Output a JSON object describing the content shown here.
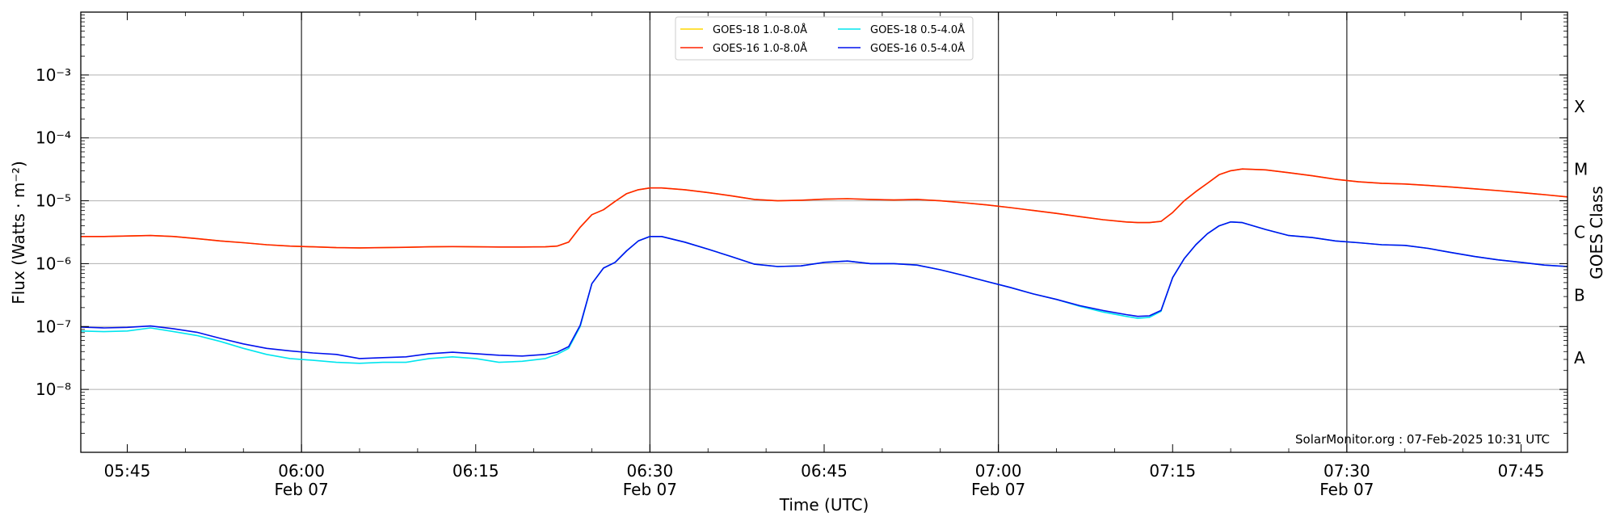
{
  "chart_data": {
    "type": "line",
    "xlabel": "Time (UTC)",
    "ylabel": "Flux (Watts · m⁻²)",
    "y2label": "GOES Class",
    "annotation": "SolarMonitor.org : 07-Feb-2025 10:31 UTC",
    "yscale": "log",
    "ylim": [
      1e-09,
      0.01
    ],
    "xlim": [
      "05:41",
      "07:49"
    ],
    "grid": "horizontal at decades, vertical at half-hours",
    "legend_position": "top-center",
    "y_tick_labels": [
      "10⁻⁸",
      "10⁻⁷",
      "10⁻⁶",
      "10⁻⁵",
      "10⁻⁴",
      "10⁻³"
    ],
    "y_tick_values": [
      1e-08,
      1e-07,
      1e-06,
      1e-05,
      0.0001,
      0.001
    ],
    "class_labels": [
      "A",
      "B",
      "C",
      "M",
      "X"
    ],
    "x_ticks": [
      {
        "time": "05:45",
        "label": "05:45",
        "date": ""
      },
      {
        "time": "06:00",
        "label": "06:00",
        "date": "Feb 07"
      },
      {
        "time": "06:15",
        "label": "06:15",
        "date": ""
      },
      {
        "time": "06:30",
        "label": "06:30",
        "date": "Feb 07"
      },
      {
        "time": "06:45",
        "label": "06:45",
        "date": ""
      },
      {
        "time": "07:00",
        "label": "07:00",
        "date": "Feb 07"
      },
      {
        "time": "07:15",
        "label": "07:15",
        "date": ""
      },
      {
        "time": "07:30",
        "label": "07:30",
        "date": "Feb 07"
      },
      {
        "time": "07:45",
        "label": "07:45",
        "date": ""
      }
    ],
    "x": [
      "05:41",
      "05:43",
      "05:45",
      "05:47",
      "05:49",
      "05:51",
      "05:53",
      "05:55",
      "05:57",
      "05:59",
      "06:01",
      "06:03",
      "06:05",
      "06:07",
      "06:09",
      "06:11",
      "06:13",
      "06:15",
      "06:17",
      "06:19",
      "06:21",
      "06:22",
      "06:23",
      "06:24",
      "06:25",
      "06:26",
      "06:27",
      "06:28",
      "06:29",
      "06:30",
      "06:31",
      "06:33",
      "06:35",
      "06:37",
      "06:39",
      "06:41",
      "06:43",
      "06:45",
      "06:47",
      "06:49",
      "06:51",
      "06:53",
      "06:55",
      "06:57",
      "06:59",
      "07:01",
      "07:03",
      "07:05",
      "07:07",
      "07:09",
      "07:11",
      "07:12",
      "07:13",
      "07:14",
      "07:15",
      "07:16",
      "07:17",
      "07:18",
      "07:19",
      "07:20",
      "07:21",
      "07:23",
      "07:25",
      "07:27",
      "07:29",
      "07:31",
      "07:33",
      "07:35",
      "07:37",
      "07:39",
      "07:41",
      "07:43",
      "07:45",
      "07:47",
      "07:49"
    ],
    "series": [
      {
        "name": "GOES-18 1.0-8.0Å",
        "color": "#ffd700",
        "values": [
          2.7e-06,
          2.7e-06,
          2.75e-06,
          2.8e-06,
          2.7e-06,
          2.5e-06,
          2.3e-06,
          2.15e-06,
          2e-06,
          1.9e-06,
          1.85e-06,
          1.8e-06,
          1.78e-06,
          1.8e-06,
          1.82e-06,
          1.85e-06,
          1.87e-06,
          1.85e-06,
          1.84e-06,
          1.84e-06,
          1.85e-06,
          1.9e-06,
          2.2e-06,
          3.8e-06,
          6e-06,
          7.2e-06,
          9.8e-06,
          1.3e-05,
          1.5e-05,
          1.6e-05,
          1.6e-05,
          1.5e-05,
          1.35e-05,
          1.2e-05,
          1.05e-05,
          1e-05,
          1.02e-05,
          1.06e-05,
          1.08e-05,
          1.05e-05,
          1.03e-05,
          1.05e-05,
          1e-05,
          9.3e-06,
          8.6e-06,
          7.8e-06,
          7e-06,
          6.3e-06,
          5.6e-06,
          5e-06,
          4.6e-06,
          4.5e-06,
          4.5e-06,
          4.7e-06,
          6.5e-06,
          1e-05,
          1.4e-05,
          1.9e-05,
          2.6e-05,
          3e-05,
          3.2e-05,
          3.1e-05,
          2.8e-05,
          2.5e-05,
          2.2e-05,
          2e-05,
          1.9e-05,
          1.85e-05,
          1.75e-05,
          1.65e-05,
          1.55e-05,
          1.45e-05,
          1.35e-05,
          1.25e-05,
          1.15e-05
        ]
      },
      {
        "name": "GOES-16 1.0-8.0Å",
        "color": "#ff2200",
        "values": [
          2.7e-06,
          2.7e-06,
          2.75e-06,
          2.8e-06,
          2.7e-06,
          2.5e-06,
          2.3e-06,
          2.15e-06,
          2e-06,
          1.9e-06,
          1.85e-06,
          1.8e-06,
          1.78e-06,
          1.8e-06,
          1.82e-06,
          1.85e-06,
          1.87e-06,
          1.85e-06,
          1.84e-06,
          1.84e-06,
          1.85e-06,
          1.9e-06,
          2.2e-06,
          3.8e-06,
          6e-06,
          7.2e-06,
          9.8e-06,
          1.3e-05,
          1.5e-05,
          1.6e-05,
          1.6e-05,
          1.5e-05,
          1.35e-05,
          1.2e-05,
          1.05e-05,
          1e-05,
          1.02e-05,
          1.06e-05,
          1.08e-05,
          1.05e-05,
          1.03e-05,
          1.05e-05,
          1e-05,
          9.3e-06,
          8.6e-06,
          7.8e-06,
          7e-06,
          6.3e-06,
          5.6e-06,
          5e-06,
          4.6e-06,
          4.5e-06,
          4.5e-06,
          4.7e-06,
          6.5e-06,
          1e-05,
          1.4e-05,
          1.9e-05,
          2.6e-05,
          3e-05,
          3.2e-05,
          3.1e-05,
          2.8e-05,
          2.5e-05,
          2.2e-05,
          2e-05,
          1.9e-05,
          1.85e-05,
          1.75e-05,
          1.65e-05,
          1.55e-05,
          1.45e-05,
          1.35e-05,
          1.25e-05,
          1.15e-05
        ]
      },
      {
        "name": "GOES-18 0.5-4.0Å",
        "color": "#00e5ee",
        "values": [
          8.5e-08,
          8.3e-08,
          8.5e-08,
          9.5e-08,
          8.3e-08,
          7.2e-08,
          5.8e-08,
          4.5e-08,
          3.6e-08,
          3.1e-08,
          2.9e-08,
          2.7e-08,
          2.6e-08,
          2.7e-08,
          2.7e-08,
          3.1e-08,
          3.3e-08,
          3.1e-08,
          2.7e-08,
          2.8e-08,
          3.1e-08,
          3.6e-08,
          4.5e-08,
          1e-07,
          4.8e-07,
          8.5e-07,
          1.05e-06,
          1.6e-06,
          2.3e-06,
          2.7e-06,
          2.7e-06,
          2.2e-06,
          1.7e-06,
          1.3e-06,
          9.8e-07,
          9e-07,
          9.2e-07,
          1.05e-06,
          1.1e-06,
          1e-06,
          1e-06,
          9.5e-07,
          8e-07,
          6.5e-07,
          5.2e-07,
          4.2e-07,
          3.3e-07,
          2.7e-07,
          2.1e-07,
          1.7e-07,
          1.45e-07,
          1.35e-07,
          1.4e-07,
          1.75e-07,
          6e-07,
          1.2e-06,
          2e-06,
          3e-06,
          4e-06,
          4.6e-06,
          4.5e-06,
          3.5e-06,
          2.8e-06,
          2.6e-06,
          2.3e-06,
          2.15e-06,
          2e-06,
          1.95e-06,
          1.75e-06,
          1.5e-06,
          1.3e-06,
          1.15e-06,
          1.05e-06,
          9.5e-07,
          9e-07
        ]
      },
      {
        "name": "GOES-16 0.5-4.0Å",
        "color": "#0011ee",
        "values": [
          9.8e-08,
          9.5e-08,
          9.7e-08,
          1.02e-07,
          9.2e-08,
          8.1e-08,
          6.5e-08,
          5.3e-08,
          4.5e-08,
          4.1e-08,
          3.8e-08,
          3.6e-08,
          3.1e-08,
          3.2e-08,
          3.3e-08,
          3.7e-08,
          3.9e-08,
          3.7e-08,
          3.5e-08,
          3.4e-08,
          3.6e-08,
          3.9e-08,
          4.8e-08,
          1.05e-07,
          4.8e-07,
          8.5e-07,
          1.05e-06,
          1.6e-06,
          2.3e-06,
          2.7e-06,
          2.7e-06,
          2.2e-06,
          1.7e-06,
          1.3e-06,
          9.8e-07,
          9e-07,
          9.2e-07,
          1.05e-06,
          1.1e-06,
          1e-06,
          1e-06,
          9.5e-07,
          8e-07,
          6.5e-07,
          5.2e-07,
          4.2e-07,
          3.3e-07,
          2.7e-07,
          2.15e-07,
          1.8e-07,
          1.55e-07,
          1.45e-07,
          1.48e-07,
          1.8e-07,
          6e-07,
          1.2e-06,
          2e-06,
          3e-06,
          4e-06,
          4.6e-06,
          4.5e-06,
          3.5e-06,
          2.8e-06,
          2.6e-06,
          2.3e-06,
          2.15e-06,
          2e-06,
          1.95e-06,
          1.75e-06,
          1.5e-06,
          1.3e-06,
          1.15e-06,
          1.05e-06,
          9.5e-07,
          9e-07
        ]
      }
    ]
  }
}
